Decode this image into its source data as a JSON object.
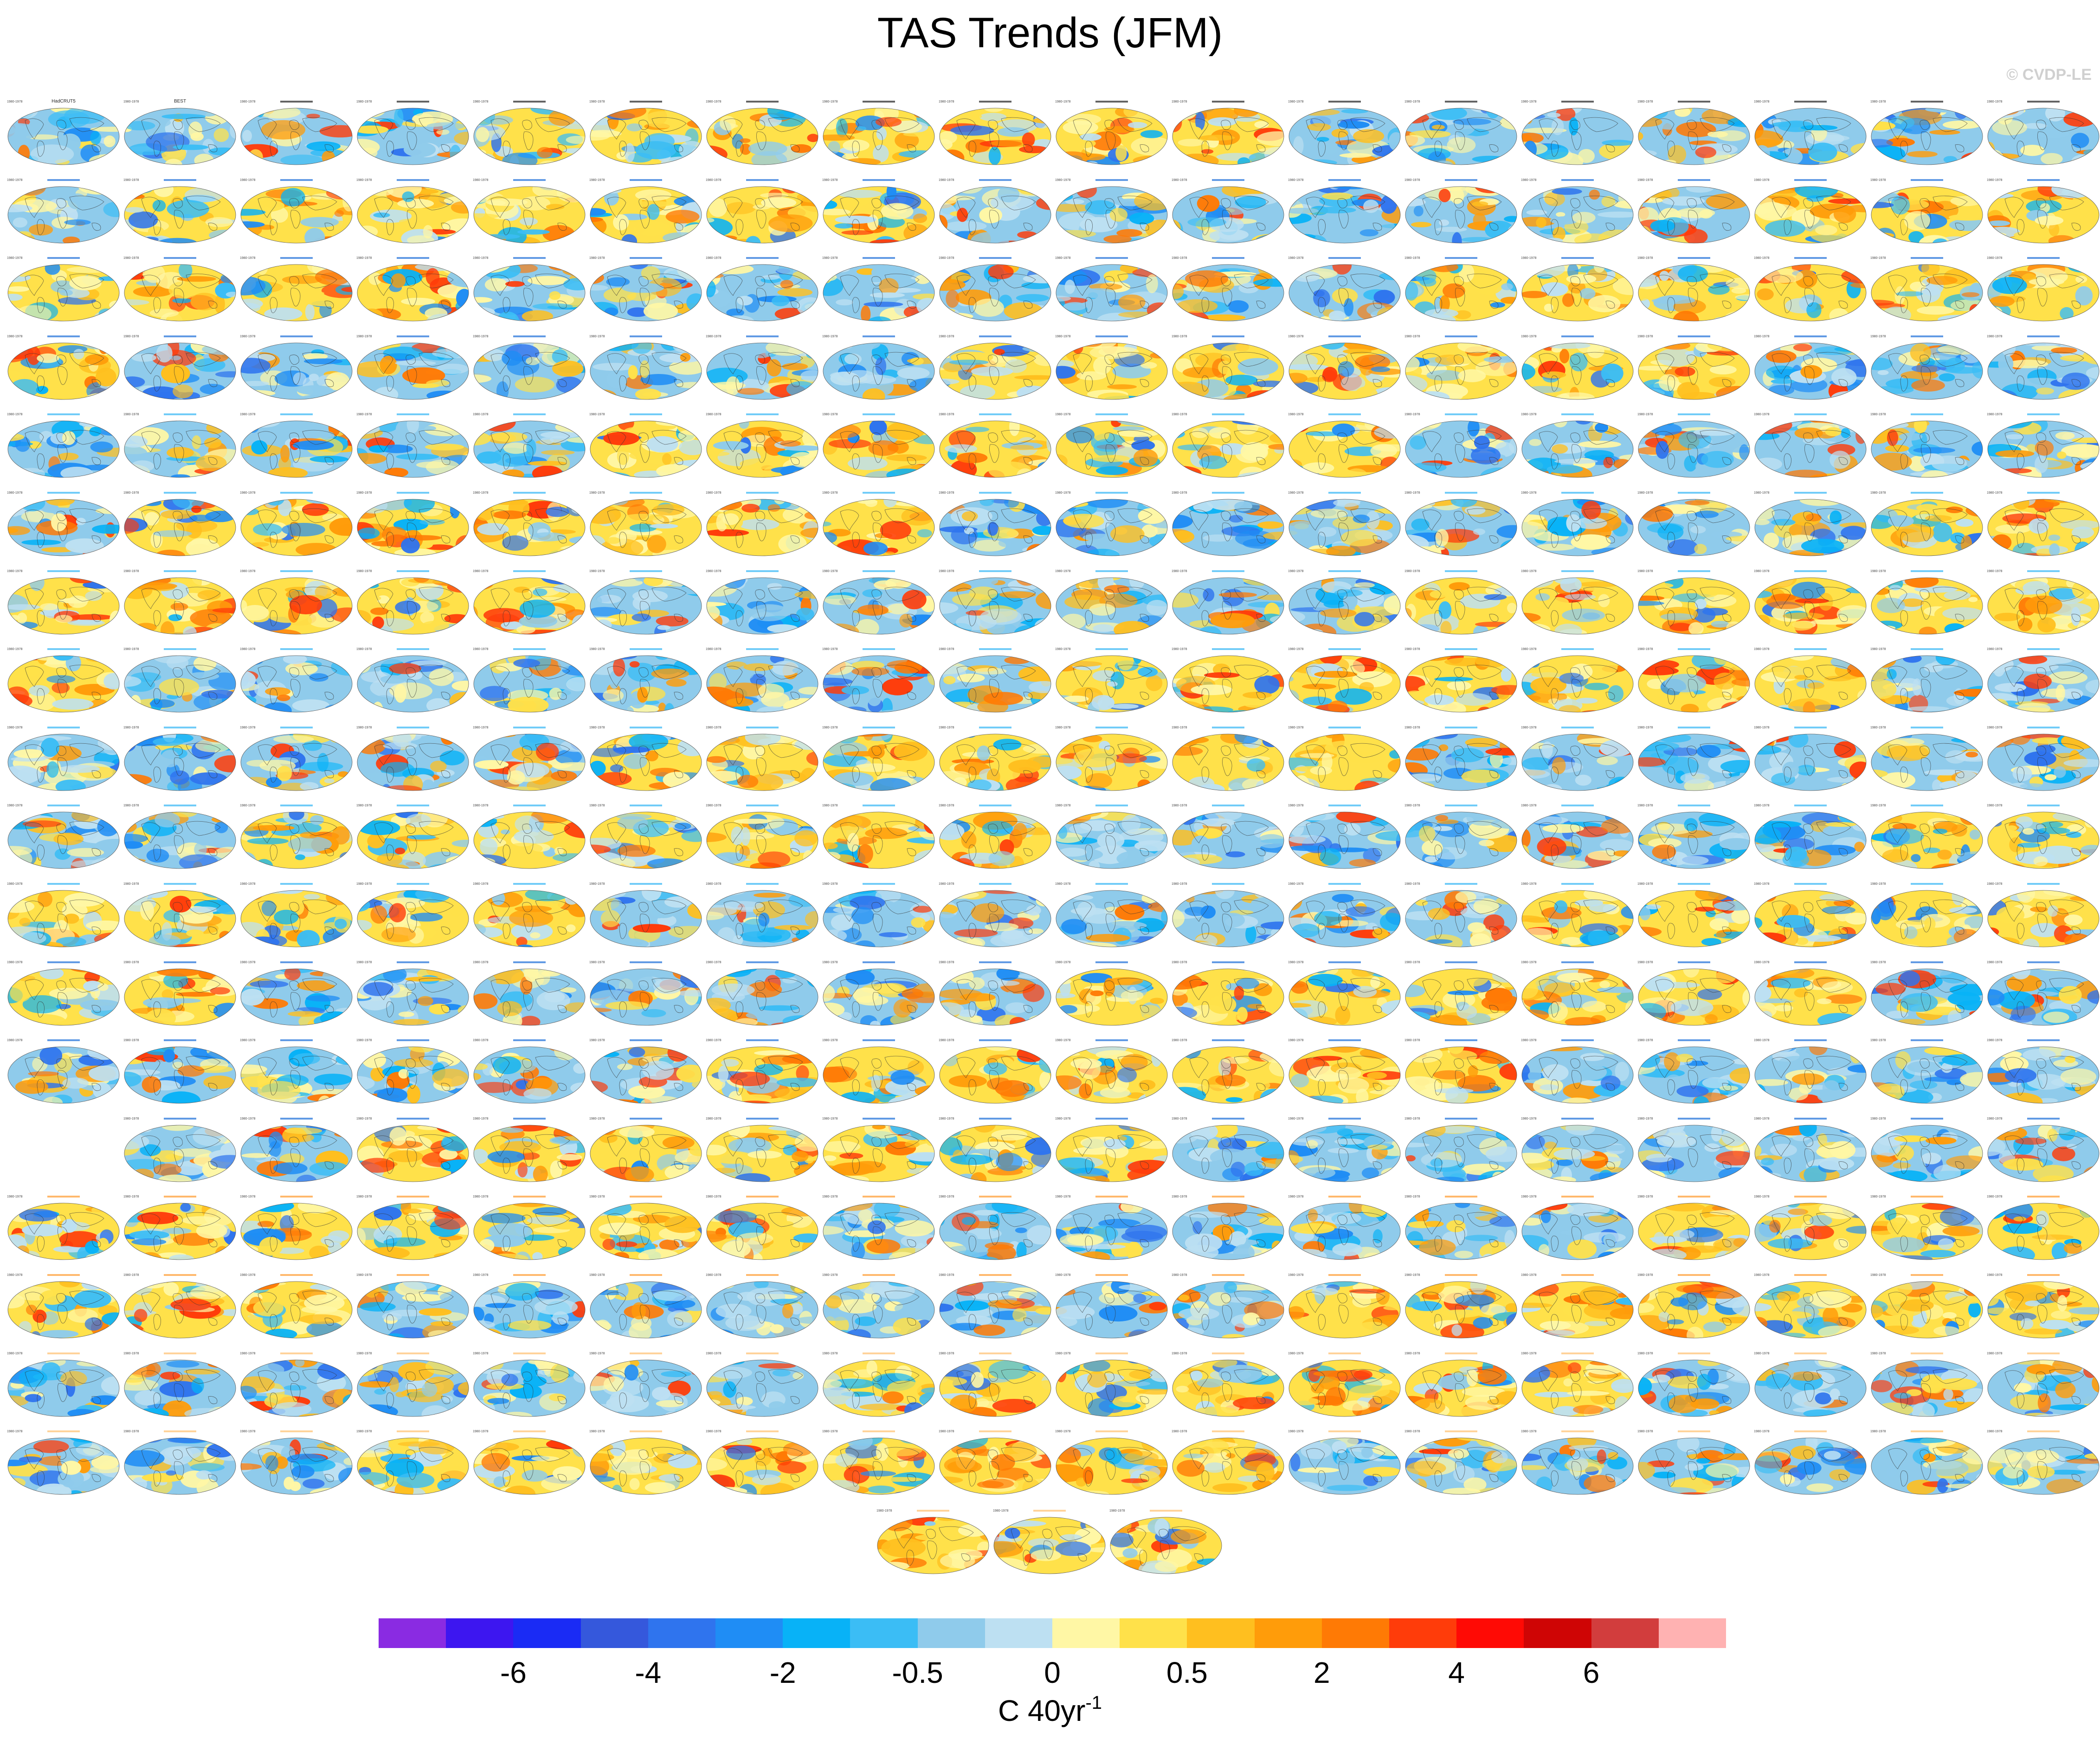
{
  "title": "TAS Trends (JFM)",
  "watermark": "© CVDP-LE",
  "colorbar": {
    "colors": [
      "#8a2be2",
      "#3d16f0",
      "#1a2bf5",
      "#3558dc",
      "#2f74ee",
      "#1f8df5",
      "#08b2f7",
      "#3bbdf5",
      "#8fcbeb",
      "#bde0f2",
      "#fff7a5",
      "#ffe14a",
      "#ffbf1f",
      "#ff9c0a",
      "#ff7a05",
      "#ff3c0a",
      "#ff0a05",
      "#cf0505",
      "#d23d3d",
      "#ffb2b2"
    ],
    "tick_labels": [
      "-6",
      "-4",
      "-2",
      "-0.5",
      "0",
      "0.5",
      "2",
      "4",
      "6"
    ],
    "units_base": "C 40yr",
    "units_exp": "-1"
  },
  "diagram": {
    "grid_rows": 18,
    "grid_cols": 18,
    "extra_row_panels": 3,
    "blank_slots": [
      [
        13,
        0
      ]
    ],
    "panel_header_left": "1980-1978",
    "row_header_colors": [
      "#222222",
      "#1e6fd8",
      "#1e6fd8",
      "#1e6fd8",
      "#35b7f5",
      "#35b7f5",
      "#35b7f5",
      "#35b7f5",
      "#35b7f5",
      "#35b7f5",
      "#35b7f5",
      "#1e6fd8",
      "#1e6fd8",
      "#1e6fd8",
      "#ff9a2e",
      "#ff9a2e",
      "#ffc070",
      "#ffc070"
    ],
    "panel_titles": [
      "HadCRUT5",
      "BEST"
    ]
  }
}
